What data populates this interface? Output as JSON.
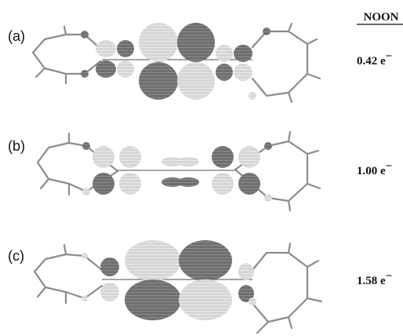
{
  "header": {
    "title": "NOON"
  },
  "panels": [
    {
      "label": "(a)",
      "value": "0.42 e",
      "unit_sup": "−"
    },
    {
      "label": "(b)",
      "value": "1.00 e",
      "unit_sup": "−"
    },
    {
      "label": "(c)",
      "value": "1.58 e",
      "unit_sup": "−"
    }
  ],
  "colors": {
    "light_lobe": "#d6d6d6",
    "dark_lobe": "#6f6f6f",
    "bond": "#8c8c8c",
    "contour": "#ffffff"
  }
}
